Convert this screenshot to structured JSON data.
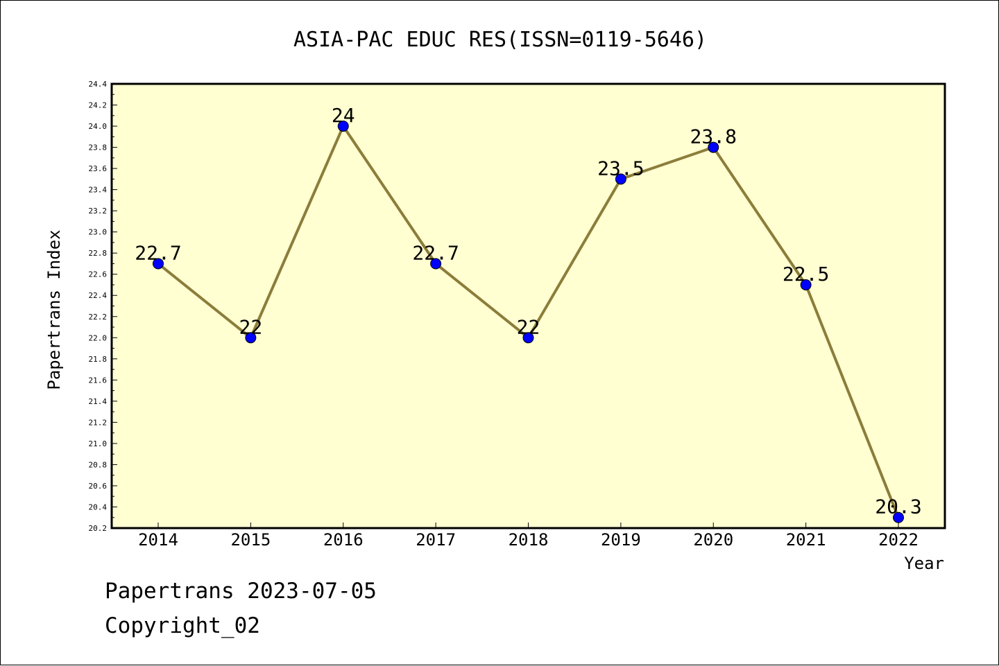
{
  "chart_data": {
    "type": "line",
    "title": "ASIA-PAC EDUC RES(ISSN=0119-5646)",
    "xlabel": "Year",
    "ylabel": "Papertrans Index",
    "categories": [
      "2014",
      "2015",
      "2016",
      "2017",
      "2018",
      "2019",
      "2020",
      "2021",
      "2022"
    ],
    "values": [
      22.7,
      22,
      24,
      22.7,
      22,
      23.5,
      23.8,
      22.5,
      20.3
    ],
    "data_labels": [
      "22.7",
      "22",
      "24",
      "22.7",
      "22",
      "23.5",
      "23.8",
      "22.5",
      "20.3"
    ],
    "ylim": [
      20.2,
      24.4
    ],
    "yticks": [
      "20.2",
      "20.4",
      "20.6",
      "20.8",
      "21.0",
      "21.2",
      "21.4",
      "21.6",
      "21.8",
      "22.0",
      "22.2",
      "22.4",
      "22.6",
      "22.8",
      "23.0",
      "23.2",
      "23.4",
      "23.6",
      "23.8",
      "24.0",
      "24.2",
      "24.4"
    ],
    "grid": false,
    "legend": "none",
    "colors": {
      "line": "#8B7D3A",
      "marker": "#0000FF",
      "plot_background": "#FFFFD2",
      "frame": "#000000"
    }
  },
  "footer": {
    "date_line": "Papertrans 2023-07-05",
    "copyright": "Copyright_02"
  }
}
